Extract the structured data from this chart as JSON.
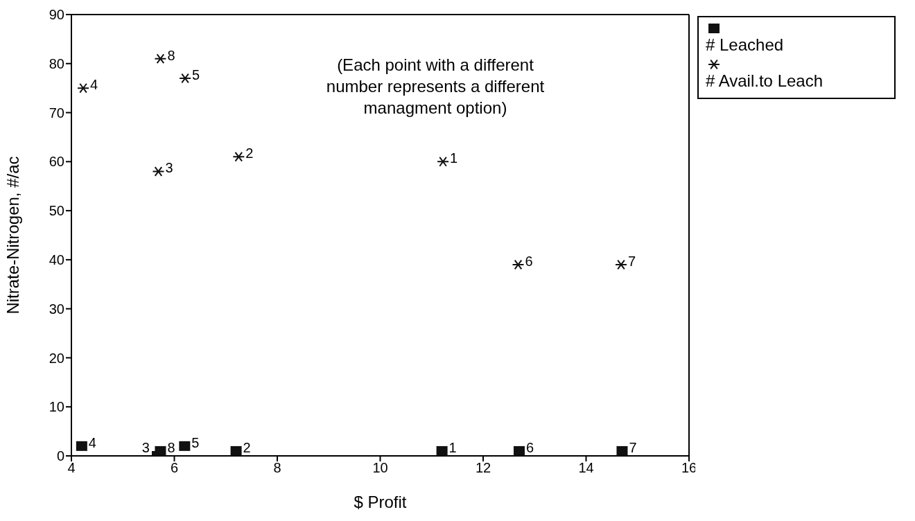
{
  "chart_data": {
    "type": "scatter",
    "xlabel": "$ Profit",
    "ylabel": "Nitrate-Nitrogen, #/ac",
    "xlim": [
      4,
      16
    ],
    "xticks": [
      4,
      6,
      8,
      10,
      12,
      14,
      16
    ],
    "ylim": [
      0,
      90
    ],
    "yticks": [
      0,
      10,
      20,
      30,
      40,
      50,
      60,
      70,
      80,
      90
    ],
    "legend": "top right",
    "series": [
      {
        "name": "# Leached",
        "color": "#111111",
        "marker": "square",
        "x": [
          11.2,
          7.2,
          5.67,
          4.2,
          6.2,
          12.7,
          14.7,
          5.73
        ],
        "values": [
          1,
          1,
          0,
          2,
          2,
          1,
          1,
          1
        ]
      },
      {
        "name": "# Avail.to Leach",
        "color": "#111111",
        "marker": "cross",
        "x": [
          11.22,
          7.25,
          5.69,
          4.23,
          6.21,
          12.68,
          14.68,
          5.73
        ],
        "values": [
          60,
          61,
          58,
          75,
          77,
          39,
          39,
          81
        ]
      }
    ],
    "annotations": [
      "(Each point with a different number represents a different managment option)",
      {
        "text": "1",
        "x": 11.2,
        "y": 1
      },
      {
        "text": "2",
        "x": 7.2,
        "y": 1
      },
      {
        "text": "3",
        "x": 5.67,
        "y": 0
      },
      {
        "text": "4",
        "x": 4.2,
        "y": 2
      },
      {
        "text": "5",
        "x": 6.2,
        "y": 2
      },
      {
        "text": "6",
        "x": 12.7,
        "y": 1
      },
      {
        "text": "7",
        "x": 14.7,
        "y": 1
      },
      {
        "text": "8",
        "x": 5.73,
        "y": 1
      },
      {
        "text": "1",
        "x": 11.22,
        "y": 60
      },
      {
        "text": "2",
        "x": 7.25,
        "y": 61
      },
      {
        "text": "3",
        "x": 5.69,
        "y": 58
      },
      {
        "text": "4",
        "x": 4.23,
        "y": 75
      },
      {
        "text": "5",
        "x": 6.21,
        "y": 77
      },
      {
        "text": "6",
        "x": 12.68,
        "y": 39
      },
      {
        "text": "7",
        "x": 14.68,
        "y": 39
      },
      {
        "text": "8",
        "x": 5.73,
        "y": 81
      }
    ]
  }
}
